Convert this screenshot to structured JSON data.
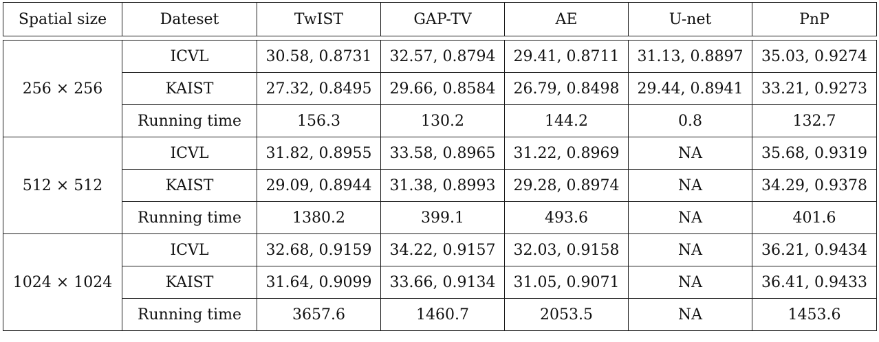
{
  "table": {
    "headers": [
      "Spatial size",
      "Dateset",
      "TwIST",
      "GAP-TV",
      "AE",
      "U-net",
      "PnP"
    ],
    "groups": [
      {
        "size": "256 × 256",
        "rows": [
          {
            "dataset": "ICVL",
            "values": [
              "30.58, 0.8731",
              "32.57, 0.8794",
              "29.41, 0.8711",
              "31.13, 0.8897",
              "35.03, 0.9274"
            ]
          },
          {
            "dataset": "KAIST",
            "values": [
              "27.32, 0.8495",
              "29.66, 0.8584",
              "26.79, 0.8498",
              "29.44, 0.8941",
              "33.21, 0.9273"
            ]
          },
          {
            "dataset": "Running time",
            "values": [
              "156.3",
              "130.2",
              "144.2",
              "0.8",
              "132.7"
            ]
          }
        ]
      },
      {
        "size": "512 × 512",
        "rows": [
          {
            "dataset": "ICVL",
            "values": [
              "31.82, 0.8955",
              "33.58, 0.8965",
              "31.22, 0.8969",
              "NA",
              "35.68, 0.9319"
            ]
          },
          {
            "dataset": "KAIST",
            "values": [
              "29.09, 0.8944",
              "31.38, 0.8993",
              "29.28, 0.8974",
              "NA",
              "34.29, 0.9378"
            ]
          },
          {
            "dataset": "Running time",
            "values": [
              "1380.2",
              "399.1",
              "493.6",
              "NA",
              "401.6"
            ]
          }
        ]
      },
      {
        "size": "1024 × 1024",
        "rows": [
          {
            "dataset": "ICVL",
            "values": [
              "32.68, 0.9159",
              "34.22, 0.9157",
              "32.03, 0.9158",
              "NA",
              "36.21, 0.9434"
            ]
          },
          {
            "dataset": "KAIST",
            "values": [
              "31.64, 0.9099",
              "33.66, 0.9134",
              "31.05, 0.9071",
              "NA",
              "36.41, 0.9433"
            ]
          },
          {
            "dataset": "Running time",
            "values": [
              "3657.6",
              "1460.7",
              "2053.5",
              "NA",
              "1453.6"
            ]
          }
        ]
      }
    ]
  }
}
